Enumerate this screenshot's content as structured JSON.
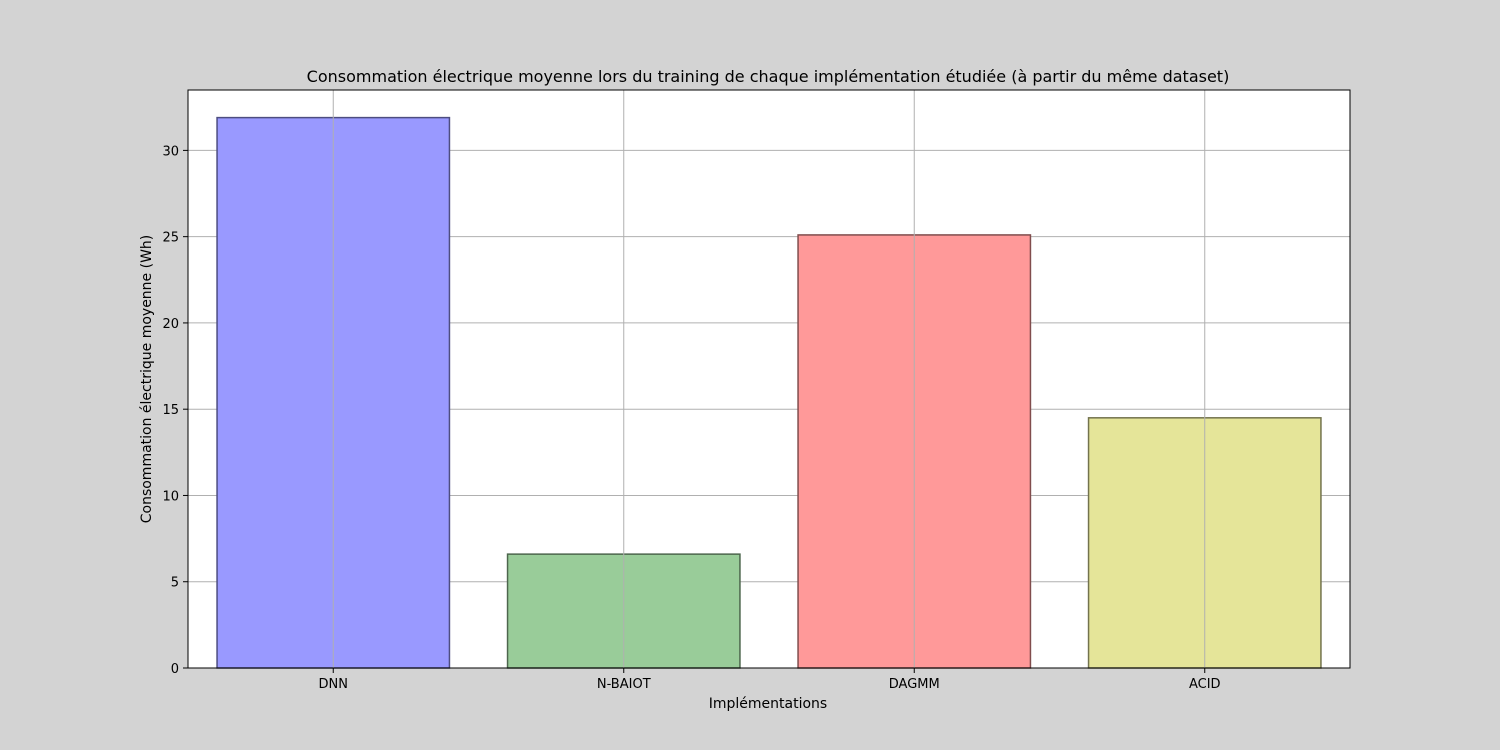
{
  "chart_data": {
    "type": "bar",
    "title": "Consommation électrique moyenne lors du training de chaque implémentation étudiée (à partir du même dataset)",
    "xlabel": "Implémentations",
    "ylabel": "Consommation électrique moyenne (Wh)",
    "categories": [
      "DNN",
      "N-BAIOT",
      "DAGMM",
      "ACID"
    ],
    "values": [
      31.9,
      6.6,
      25.1,
      14.5
    ],
    "colors": [
      "#9999ff",
      "#99cc99",
      "#ff9999",
      "#e5e599"
    ],
    "edge_colors": [
      "#4d4d80",
      "#4d664d",
      "#804d4d",
      "#73734d"
    ],
    "ylim": [
      0,
      33.5
    ],
    "yticks": [
      0,
      5,
      10,
      15,
      20,
      25,
      30
    ],
    "grid": true,
    "background": "#d3d3d3",
    "plot_background": "#ffffff",
    "grid_color": "#b0b0b0"
  }
}
